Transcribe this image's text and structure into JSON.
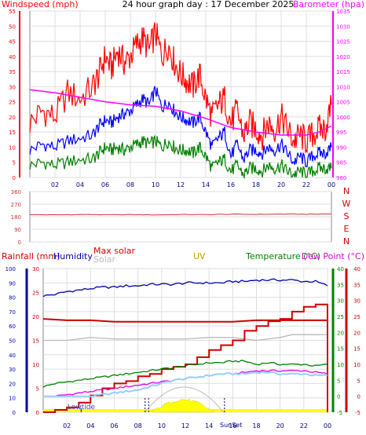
{
  "title": "24 hour graph day : 17 December 2025",
  "colors": {
    "wind": "#ff0000",
    "wind_avg": "#0000ff",
    "wind_low": "#008000",
    "baro": "#ff00ff",
    "axis": "#000000",
    "grid": "#dddddd",
    "dir": "#cc3333",
    "rain": "#cc0000",
    "humidity": "#0000aa",
    "maxsolar": "#cc0000",
    "solar": "#bbbbbb",
    "uv": "#cc9900",
    "temp": "#008000",
    "dew": "#dd00dd",
    "feels": "#99ccff",
    "sun": "#ffff00",
    "sunedge": "#cc0000"
  },
  "chart_data": [
    {
      "type": "line",
      "labels": {
        "left": "Windspeed (mph)",
        "right": "Barometer (hpa)"
      },
      "x_ticks": [
        "02",
        "04",
        "06",
        "08",
        "10",
        "12",
        "14",
        "16",
        "18",
        "20",
        "22",
        "00"
      ],
      "y_left": {
        "range": [
          0,
          55
        ],
        "ticks": [
          "0",
          "5",
          "10",
          "15",
          "20",
          "25",
          "30",
          "35",
          "40",
          "45",
          "50",
          "55"
        ]
      },
      "y_right": {
        "range": [
          980,
          1035
        ],
        "ticks": [
          "980",
          "985",
          "990",
          "995",
          "1000",
          "1005",
          "1010",
          "1015",
          "1020",
          "1025",
          "1030",
          "1035"
        ]
      },
      "grid": true,
      "series": [
        {
          "key": "wind_gust",
          "color_key": "wind",
          "axis": "left",
          "x": [
            0,
            1,
            2,
            3,
            4,
            5,
            5.5,
            6,
            6.5,
            7,
            7.5,
            8,
            8.5,
            9,
            9.5,
            10,
            10.5,
            11,
            11.5,
            12,
            12.5,
            13,
            13.5,
            14,
            14.5,
            15,
            15.5,
            16,
            16.5,
            17,
            17.5,
            18,
            18.5,
            19,
            19.5,
            20,
            20.5,
            21,
            21.5,
            22,
            22.5,
            23,
            23.5,
            24
          ],
          "y": [
            18,
            22,
            20,
            28,
            26,
            30,
            34,
            40,
            36,
            42,
            38,
            40,
            44,
            46,
            42,
            48,
            40,
            44,
            38,
            34,
            32,
            30,
            34,
            26,
            20,
            24,
            26,
            18,
            22,
            14,
            18,
            16,
            14,
            18,
            16,
            20,
            16,
            12,
            14,
            12,
            14,
            16,
            16,
            24
          ]
        },
        {
          "key": "wind_avg",
          "color_key": "wind_avg",
          "axis": "left",
          "x": [
            0,
            1,
            2,
            3,
            4,
            5,
            5.5,
            6,
            6.5,
            7,
            7.5,
            8,
            8.5,
            9,
            9.5,
            10,
            10.5,
            11,
            11.5,
            12,
            12.5,
            13,
            13.5,
            14,
            14.5,
            15,
            15.5,
            16,
            16.5,
            17,
            17.5,
            18,
            18.5,
            19,
            19.5,
            20,
            20.5,
            21,
            21.5,
            22,
            22.5,
            23,
            23.5,
            24
          ],
          "y": [
            9,
            11,
            10,
            12,
            13,
            14,
            17,
            19,
            18,
            20,
            21,
            22,
            24,
            26,
            24,
            29,
            23,
            25,
            22,
            20,
            19,
            18,
            20,
            15,
            10,
            13,
            15,
            7,
            11,
            6,
            9,
            9,
            8,
            10,
            9,
            11,
            8,
            5,
            7,
            5,
            7,
            8,
            8,
            10
          ]
        },
        {
          "key": "wind_low",
          "color_key": "wind_low",
          "axis": "left",
          "x": [
            0,
            1,
            2,
            3,
            4,
            5,
            5.5,
            6,
            6.5,
            7,
            7.5,
            8,
            8.5,
            9,
            9.5,
            10,
            10.5,
            11,
            11.5,
            12,
            12.5,
            13,
            13.5,
            14,
            14.5,
            15,
            15.5,
            16,
            16.5,
            17,
            17.5,
            18,
            18.5,
            19,
            19.5,
            20,
            20.5,
            21,
            21.5,
            22,
            22.5,
            23,
            23.5,
            24
          ],
          "y": [
            4,
            5,
            4,
            5,
            6,
            6,
            8,
            10,
            9,
            10,
            9,
            10,
            11,
            12,
            11,
            12,
            10,
            12,
            10,
            9,
            9,
            8,
            10,
            7,
            3,
            5,
            6,
            2,
            4,
            1,
            3,
            3,
            2,
            4,
            3,
            4,
            2,
            1,
            2,
            1,
            2,
            3,
            3,
            3
          ]
        },
        {
          "key": "barometer",
          "color_key": "baro",
          "axis": "right",
          "x": [
            0,
            2,
            4,
            6,
            8,
            10,
            12,
            14,
            16,
            18,
            20,
            22,
            23,
            24
          ],
          "y": [
            1009,
            1008,
            1006.5,
            1005,
            1004,
            1003.5,
            1002,
            999.5,
            996.5,
            995,
            994,
            994,
            995,
            997
          ]
        }
      ]
    },
    {
      "type": "line",
      "labels": {
        "compass": [
          "N",
          "W",
          "S",
          "E",
          "N"
        ]
      },
      "y": {
        "range": [
          0,
          360
        ],
        "ticks": [
          "0",
          "90",
          "180",
          "270",
          "360"
        ]
      },
      "series": [
        {
          "key": "wind_direction",
          "color_key": "dir",
          "x": [
            0,
            2,
            4,
            6,
            8,
            10,
            12,
            14,
            16,
            18,
            20,
            22,
            24
          ],
          "y": [
            195,
            193,
            196,
            194,
            195,
            193,
            196,
            195,
            198,
            197,
            199,
            198,
            200
          ]
        }
      ]
    },
    {
      "type": "line",
      "legend": {
        "rain": "Rainfall (mm)",
        "humidity": "Humidity",
        "maxsolar": "Max solar",
        "solar": "Solar",
        "uv": "UV",
        "temp": "Temperature (°C)",
        "dew": "Dew Point (°C)"
      },
      "annotations": {
        "lowtide": "Lowtide",
        "sunset": "SunSet"
      },
      "x_ticks": [
        "02",
        "04",
        "06",
        "08",
        "10",
        "12",
        "14",
        "16",
        "18",
        "20",
        "22",
        "00"
      ],
      "y_humidity": {
        "range": [
          0,
          100
        ],
        "ticks": [
          "0",
          "10",
          "20",
          "30",
          "40",
          "50",
          "60",
          "70",
          "80",
          "90",
          "100"
        ]
      },
      "y_rain": {
        "range": [
          0,
          30
        ],
        "ticks": [
          "0",
          "5",
          "10",
          "15",
          "20",
          "25",
          "30"
        ]
      },
      "y_temp": {
        "range": [
          -5,
          40
        ],
        "ticks": [
          "-5",
          "0",
          "5",
          "10",
          "15",
          "20",
          "25",
          "30",
          "35",
          "40"
        ]
      },
      "grid": true,
      "series": [
        {
          "key": "humidity",
          "color_key": "humidity",
          "axis": "humidity",
          "x": [
            0,
            1,
            2,
            3,
            4,
            5,
            6,
            7,
            8,
            9,
            10,
            11,
            12,
            13,
            14,
            15,
            16,
            17,
            18,
            19,
            20,
            21,
            22,
            23,
            24
          ],
          "y": [
            81,
            82,
            84,
            85,
            86,
            87,
            87,
            88,
            88,
            89,
            89,
            89,
            90,
            90,
            90,
            90,
            91,
            91,
            92,
            92,
            92,
            92,
            91,
            91,
            88
          ]
        },
        {
          "key": "max_solar",
          "color_key": "maxsolar",
          "axis": "humidity",
          "x": [
            0,
            2,
            4,
            6,
            8,
            10,
            12,
            14,
            16,
            18,
            20,
            22,
            24
          ],
          "y": [
            65,
            64,
            64,
            63,
            63,
            63,
            63,
            63,
            63,
            64,
            64,
            64,
            64
          ]
        },
        {
          "key": "solar",
          "color_key": "solar",
          "axis": "humidity",
          "x": [
            0,
            2,
            4,
            6,
            8,
            10,
            12,
            14,
            16,
            18,
            20,
            21,
            22,
            24
          ],
          "y": [
            50,
            50,
            52,
            51,
            51,
            51,
            51,
            52,
            52,
            50,
            52,
            54,
            54,
            54
          ]
        },
        {
          "key": "rainfall",
          "color_key": "rain",
          "axis": "rain",
          "x": [
            0,
            1,
            2,
            3,
            4,
            5,
            6,
            7,
            8,
            9,
            10,
            11,
            12,
            13,
            14,
            15,
            16,
            17,
            18,
            19,
            20,
            21,
            22,
            23,
            24
          ],
          "y": [
            0,
            0.5,
            1,
            2,
            3.5,
            5,
            6,
            6.5,
            7.5,
            8,
            9,
            9.5,
            10,
            11.5,
            13,
            14,
            15,
            17,
            18,
            19,
            19.5,
            21,
            22,
            22.5,
            22.5
          ]
        },
        {
          "key": "temperature",
          "color_key": "temp",
          "axis": "temp",
          "x": [
            0,
            1,
            2,
            3,
            4,
            5,
            6,
            7,
            8,
            9,
            10,
            11,
            12,
            13,
            14,
            15,
            16,
            17,
            18,
            19,
            20,
            21,
            22,
            23,
            24
          ],
          "y": [
            3,
            4,
            4.5,
            5,
            5.5,
            6,
            6.5,
            7,
            7.5,
            8,
            8.5,
            9,
            9.5,
            10,
            10.5,
            10.5,
            11,
            11,
            10,
            10.5,
            10,
            10,
            10,
            9.5,
            10
          ]
        },
        {
          "key": "dew_point",
          "color_key": "dew",
          "axis": "temp",
          "x": [
            0,
            1,
            2,
            3,
            4,
            5,
            6,
            7,
            8,
            9,
            10,
            11,
            12,
            13,
            14,
            15,
            16,
            17,
            18,
            19,
            20,
            21,
            22,
            23,
            24
          ],
          "y": [
            -0.5,
            0,
            0.5,
            1,
            1.5,
            2,
            2.5,
            3,
            3.5,
            4,
            4.5,
            5,
            5.5,
            6,
            6.5,
            7,
            7,
            7.5,
            8,
            8,
            8,
            8,
            8,
            7.5,
            7
          ]
        },
        {
          "key": "feels_like",
          "color_key": "feels",
          "axis": "temp",
          "x": [
            0,
            1,
            2,
            3,
            4,
            5,
            6,
            7,
            8,
            9,
            10,
            11,
            12,
            13,
            14,
            15,
            16,
            17,
            18,
            19,
            20,
            21,
            22,
            23,
            24
          ],
          "y": [
            -2,
            -1.5,
            -1,
            -0.5,
            0,
            0.5,
            1,
            1.5,
            2,
            3,
            4,
            5,
            5.5,
            6,
            6.5,
            7,
            7,
            7,
            7.5,
            7.5,
            7,
            7,
            7,
            6.5,
            6.5
          ]
        }
      ]
    }
  ]
}
